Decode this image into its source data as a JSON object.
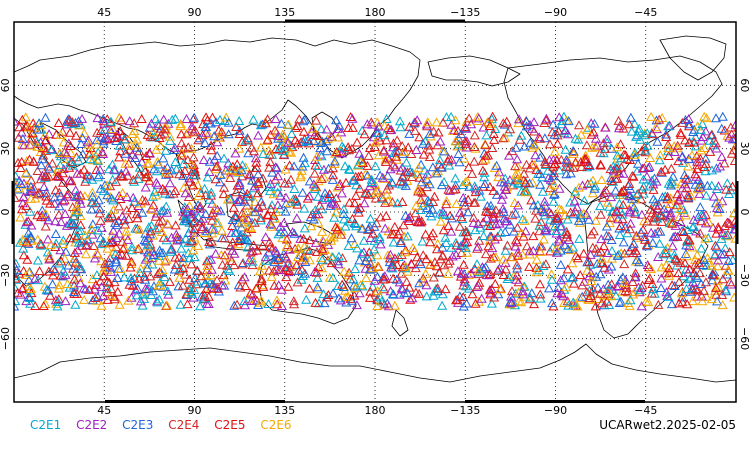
{
  "map": {
    "projection": "cylindrical-equidistant",
    "center_longitude": 180,
    "lat_range": [
      -90,
      90
    ],
    "lon_range": [
      0,
      360
    ],
    "grid": "dotted",
    "top_ticks": [
      "45",
      "90",
      "135",
      "180",
      "−135",
      "−90",
      "−45"
    ],
    "bottom_ticks": [
      "45",
      "90",
      "135",
      "180",
      "−135",
      "−90",
      "−45"
    ],
    "top_tick_lons": [
      45,
      90,
      135,
      180,
      225,
      270,
      315
    ],
    "left_ticks": [
      "60",
      "30",
      "0",
      "−30",
      "−60"
    ],
    "right_ticks": [
      "60",
      "30",
      "0",
      "−30",
      "−60"
    ],
    "lat_tick_values": [
      60,
      30,
      0,
      -30,
      -60
    ],
    "coastline_color": "#000000",
    "marker": "open-triangle",
    "observation_lat_band": [
      -45,
      45
    ]
  },
  "legend": [
    {
      "name": "C2E1",
      "color": "#00aacc"
    },
    {
      "name": "C2E2",
      "color": "#a020c0"
    },
    {
      "name": "C2E3",
      "color": "#1e64dc"
    },
    {
      "name": "C2E4",
      "color": "#d22828"
    },
    {
      "name": "C2E5",
      "color": "#e01010"
    },
    {
      "name": "C2E6",
      "color": "#f5a800"
    }
  ],
  "dataset_label": "UCARwet2.2025-02-05"
}
